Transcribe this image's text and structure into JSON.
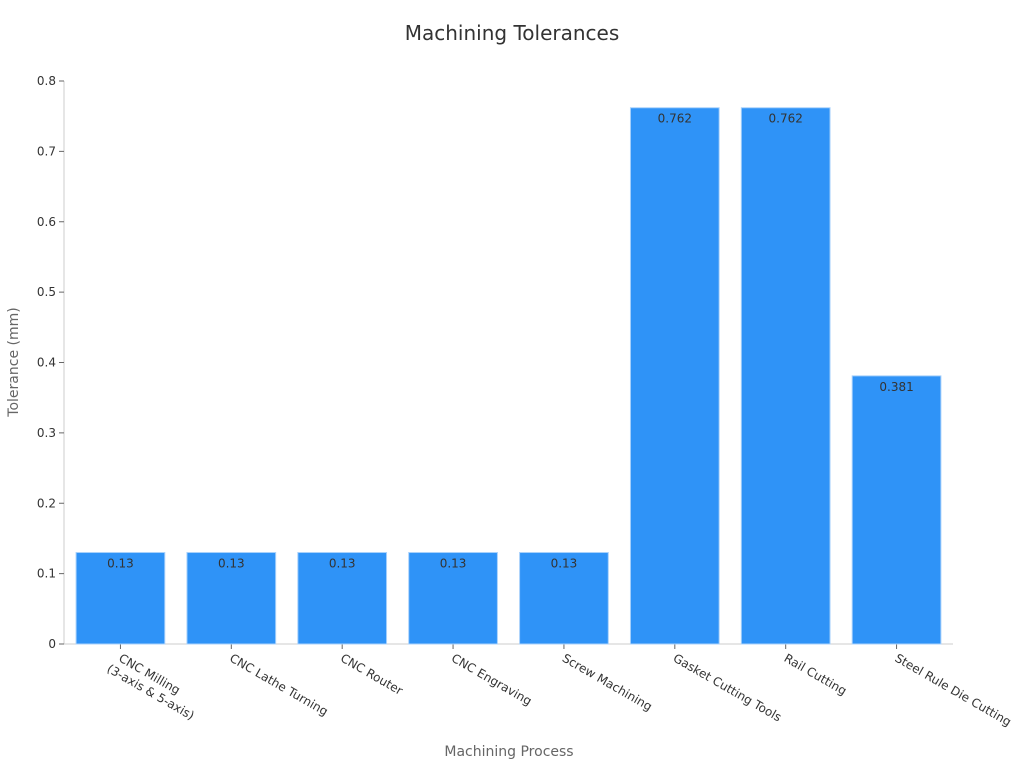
{
  "chart_data": {
    "type": "bar",
    "title": "Machining Tolerances",
    "xlabel": "Machining Process",
    "ylabel": "Tolerance (mm)",
    "categories": [
      [
        "CNC Milling",
        "(3-axis & 5-axis)"
      ],
      [
        "CNC Lathe Turning"
      ],
      [
        "CNC Router"
      ],
      [
        "CNC Engraving"
      ],
      [
        "Screw Machining"
      ],
      [
        "Gasket Cutting Tools"
      ],
      [
        "Rail Cutting"
      ],
      [
        "Steel Rule Die Cutting"
      ]
    ],
    "values": [
      0.13,
      0.13,
      0.13,
      0.13,
      0.13,
      0.762,
      0.762,
      0.381
    ],
    "data_labels": [
      "0.13",
      "0.13",
      "0.13",
      "0.13",
      "0.13",
      "0.762",
      "0.762",
      "0.381"
    ],
    "ylim": [
      0,
      0.8
    ],
    "yticks": [
      0,
      0.1,
      0.2,
      0.3,
      0.4,
      0.5,
      0.6,
      0.7,
      0.8
    ],
    "ytick_labels": [
      "0",
      "0.1",
      "0.2",
      "0.3",
      "0.4",
      "0.5",
      "0.6",
      "0.7",
      "0.8"
    ],
    "grid": false,
    "legend": "none",
    "bar_color": "#2f93f7",
    "bar_edge_color": "#a8d1fb"
  }
}
